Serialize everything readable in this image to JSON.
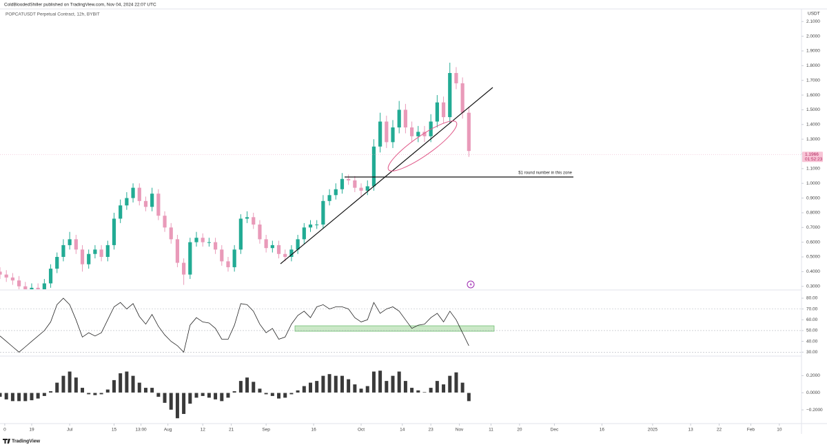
{
  "header": {
    "publisher": "ColdBloodedShiller published on TradingView.com, Nov 04, 2024 22:07 UTC"
  },
  "chart_data": [
    {
      "type": "candlestick",
      "title": "POPCATUSDT Perpetual Contract, 12h, BYBIT",
      "ylabel": "USDT",
      "annotation": "$1 round number in this zone",
      "x": [
        8,
        10,
        12,
        14,
        16,
        18,
        20,
        22,
        24,
        26,
        28,
        30,
        32,
        34,
        36,
        38,
        40,
        42,
        44,
        46,
        48,
        50,
        52,
        54,
        56,
        58,
        60,
        62,
        64,
        66,
        68,
        70,
        72,
        74,
        76,
        78,
        80,
        82,
        84,
        86,
        88,
        90,
        92,
        94,
        96,
        98,
        100,
        102,
        104,
        106,
        108,
        110,
        112,
        114,
        116,
        118,
        120,
        122,
        124,
        126,
        128,
        130,
        132,
        134,
        136,
        138,
        140,
        142,
        144,
        146,
        148,
        150,
        152,
        154,
        156
      ],
      "open": [
        0.4,
        0.38,
        0.36,
        0.34,
        0.3,
        0.27,
        0.29,
        0.28,
        0.32,
        0.42,
        0.5,
        0.58,
        0.62,
        0.55,
        0.45,
        0.52,
        0.55,
        0.5,
        0.58,
        0.76,
        0.85,
        0.9,
        0.97,
        0.88,
        0.84,
        0.93,
        0.78,
        0.7,
        0.62,
        0.46,
        0.38,
        0.6,
        0.63,
        0.6,
        0.6,
        0.55,
        0.47,
        0.43,
        0.55,
        0.76,
        0.77,
        0.72,
        0.62,
        0.56,
        0.58,
        0.52,
        0.5,
        0.55,
        0.62,
        0.7,
        0.72,
        0.72,
        0.88,
        0.92,
        0.96,
        1.03,
        1.02,
        0.97,
        0.95,
        0.98,
        1.25,
        1.42,
        1.28,
        1.38,
        1.5,
        1.38,
        1.32,
        1.35,
        1.32,
        1.42,
        1.55,
        1.45,
        1.75,
        1.68,
        1.48
      ],
      "high": [
        0.43,
        0.41,
        0.39,
        0.37,
        0.33,
        0.32,
        0.32,
        0.35,
        0.45,
        0.53,
        0.62,
        0.67,
        0.65,
        0.58,
        0.55,
        0.58,
        0.58,
        0.61,
        0.8,
        0.89,
        0.94,
        1.0,
        1.0,
        0.91,
        0.97,
        0.96,
        0.81,
        0.73,
        0.65,
        0.49,
        0.63,
        0.67,
        0.66,
        0.63,
        0.63,
        0.58,
        0.5,
        0.58,
        0.79,
        0.81,
        0.8,
        0.75,
        0.65,
        0.61,
        0.61,
        0.55,
        0.58,
        0.65,
        0.73,
        0.75,
        0.75,
        0.92,
        0.96,
        1.0,
        1.07,
        1.06,
        1.05,
        1.0,
        1.02,
        1.3,
        1.48,
        1.46,
        1.43,
        1.56,
        1.54,
        1.42,
        1.39,
        1.39,
        1.47,
        1.6,
        1.59,
        1.82,
        1.79,
        1.72,
        1.52
      ],
      "low": [
        0.35,
        0.33,
        0.31,
        0.27,
        0.24,
        0.24,
        0.25,
        0.25,
        0.29,
        0.39,
        0.47,
        0.55,
        0.52,
        0.4,
        0.42,
        0.49,
        0.47,
        0.47,
        0.55,
        0.73,
        0.82,
        0.87,
        0.85,
        0.81,
        0.81,
        0.75,
        0.67,
        0.59,
        0.43,
        0.31,
        0.35,
        0.57,
        0.57,
        0.57,
        0.52,
        0.44,
        0.4,
        0.4,
        0.52,
        0.73,
        0.69,
        0.59,
        0.53,
        0.53,
        0.49,
        0.47,
        0.47,
        0.52,
        0.59,
        0.67,
        0.69,
        0.69,
        0.85,
        0.89,
        0.93,
        0.99,
        0.94,
        0.91,
        0.92,
        0.95,
        1.21,
        1.24,
        1.24,
        1.34,
        1.34,
        1.28,
        1.28,
        1.28,
        1.28,
        1.38,
        1.41,
        1.41,
        1.64,
        1.44,
        1.18
      ],
      "close": [
        0.38,
        0.36,
        0.34,
        0.3,
        0.27,
        0.29,
        0.28,
        0.32,
        0.42,
        0.5,
        0.58,
        0.62,
        0.55,
        0.45,
        0.52,
        0.55,
        0.5,
        0.58,
        0.76,
        0.85,
        0.9,
        0.97,
        0.88,
        0.84,
        0.93,
        0.78,
        0.7,
        0.62,
        0.46,
        0.38,
        0.6,
        0.63,
        0.6,
        0.6,
        0.55,
        0.47,
        0.43,
        0.55,
        0.76,
        0.77,
        0.72,
        0.62,
        0.56,
        0.58,
        0.52,
        0.5,
        0.55,
        0.62,
        0.7,
        0.72,
        0.72,
        0.88,
        0.92,
        0.96,
        1.03,
        1.02,
        0.97,
        0.95,
        0.98,
        1.25,
        1.42,
        1.28,
        1.38,
        1.5,
        1.38,
        1.32,
        1.35,
        1.32,
        1.42,
        1.55,
        1.45,
        1.75,
        1.68,
        1.48,
        1.22
      ],
      "up_color": "#22ab94",
      "down_color": "#e99ab9",
      "ylim": [
        0.28,
        2.19
      ],
      "yticks": [
        {
          "value": 2.1,
          "label": "2.1000"
        },
        {
          "value": 2.0,
          "label": "2.0000"
        },
        {
          "value": 1.9,
          "label": "1.9000"
        },
        {
          "value": 1.8,
          "label": "1.8000"
        },
        {
          "value": 1.7,
          "label": "1.7000"
        },
        {
          "value": 1.6,
          "label": "1.6000"
        },
        {
          "value": 1.5,
          "label": "1.5000"
        },
        {
          "value": 1.4,
          "label": "1.4000"
        },
        {
          "value": 1.3,
          "label": "1.3000"
        },
        {
          "value": 1.2,
          "label": "1.2000"
        },
        {
          "value": 1.1,
          "label": "1.1000"
        },
        {
          "value": 1.0,
          "label": "1.0000"
        },
        {
          "value": 0.9,
          "label": "0.9000"
        },
        {
          "value": 0.8,
          "label": "0.8000"
        },
        {
          "value": 0.7,
          "label": "0.7000"
        },
        {
          "value": 0.6,
          "label": "0.6000"
        },
        {
          "value": 0.5,
          "label": "0.5000"
        },
        {
          "value": 0.4,
          "label": "0.4000"
        },
        {
          "value": 0.3,
          "label": "0.3000"
        }
      ],
      "xlim": [
        8,
        261
      ],
      "xticks": [
        {
          "value": 9.5,
          "label": "0"
        },
        {
          "value": 18,
          "label": "19"
        },
        {
          "value": 30,
          "label": "Jul"
        },
        {
          "value": 44,
          "label": "15"
        },
        {
          "value": 52.5,
          "label": "13:00"
        },
        {
          "value": 61,
          "label": "Aug"
        },
        {
          "value": 72,
          "label": "12"
        },
        {
          "value": 81,
          "label": "21"
        },
        {
          "value": 92,
          "label": "Sep"
        },
        {
          "value": 107,
          "label": "16"
        },
        {
          "value": 122,
          "label": "Oct"
        },
        {
          "value": 135,
          "label": "14"
        },
        {
          "value": 144,
          "label": "23"
        },
        {
          "value": 153,
          "label": "Nov"
        },
        {
          "value": 163,
          "label": "11"
        },
        {
          "value": 172,
          "label": "20"
        },
        {
          "value": 183,
          "label": "Dec"
        },
        {
          "value": 198,
          "label": "16"
        },
        {
          "value": 214,
          "label": "2025"
        },
        {
          "value": 226,
          "label": "13"
        },
        {
          "value": 235,
          "label": "22"
        },
        {
          "value": 245,
          "label": "Feb"
        },
        {
          "value": 254,
          "label": "10"
        }
      ],
      "last_price": 1.1966,
      "countdown": "01:52:23"
    },
    {
      "type": "line",
      "color": "#222222",
      "values": [
        45,
        40,
        35,
        30,
        35,
        40,
        45,
        50,
        58,
        74,
        80,
        74,
        60,
        44,
        48,
        45,
        48,
        60,
        72,
        76,
        70,
        75,
        63,
        56,
        65,
        54,
        46,
        40,
        36,
        30,
        55,
        62,
        58,
        57,
        52,
        42,
        42,
        55,
        75,
        74,
        68,
        56,
        48,
        52,
        42,
        44,
        56,
        64,
        68,
        62,
        72,
        74,
        70,
        72,
        72,
        70,
        62,
        58,
        60,
        76,
        66,
        70,
        72,
        68,
        60,
        52,
        55,
        56,
        62,
        66,
        58,
        68,
        60,
        48,
        36
      ],
      "ylim": [
        27,
        87
      ],
      "yticks": [
        {
          "value": 80,
          "label": "80.00"
        },
        {
          "value": 70,
          "label": "70.00"
        },
        {
          "value": 60,
          "label": "60.00"
        },
        {
          "value": 50,
          "label": "50.00"
        },
        {
          "value": 40,
          "label": "40.00"
        },
        {
          "value": 30,
          "label": "30.00"
        }
      ]
    },
    {
      "type": "bar",
      "color": "#3a3a3a",
      "values": [
        -0.05,
        -0.08,
        -0.1,
        -0.1,
        -0.1,
        -0.09,
        -0.07,
        -0.04,
        0.02,
        0.12,
        0.2,
        0.25,
        0.18,
        0.06,
        -0.02,
        -0.03,
        -0.02,
        0.04,
        0.15,
        0.23,
        0.25,
        0.2,
        0.12,
        0.06,
        0.06,
        -0.05,
        -0.12,
        -0.2,
        -0.3,
        -0.25,
        -0.13,
        -0.06,
        -0.04,
        -0.06,
        -0.08,
        -0.1,
        -0.06,
        0.02,
        0.14,
        0.18,
        0.13,
        0.05,
        -0.02,
        -0.04,
        -0.07,
        -0.06,
        -0.02,
        0.03,
        0.08,
        0.12,
        0.14,
        0.2,
        0.22,
        0.2,
        0.2,
        0.16,
        0.1,
        0.05,
        0.08,
        0.25,
        0.26,
        0.14,
        0.2,
        0.25,
        0.14,
        0.06,
        0.03,
        0.01,
        0.06,
        0.14,
        0.1,
        0.2,
        0.24,
        0.12,
        -0.1
      ],
      "ylim": [
        -0.36,
        0.42
      ],
      "yticks": [
        {
          "value": 0.2,
          "label": "0.2000"
        },
        {
          "value": 0,
          "label": "0.0000"
        },
        {
          "value": -0.2,
          "label": "−0.2000"
        }
      ]
    }
  ],
  "footer": {
    "logo": "TradingView"
  }
}
